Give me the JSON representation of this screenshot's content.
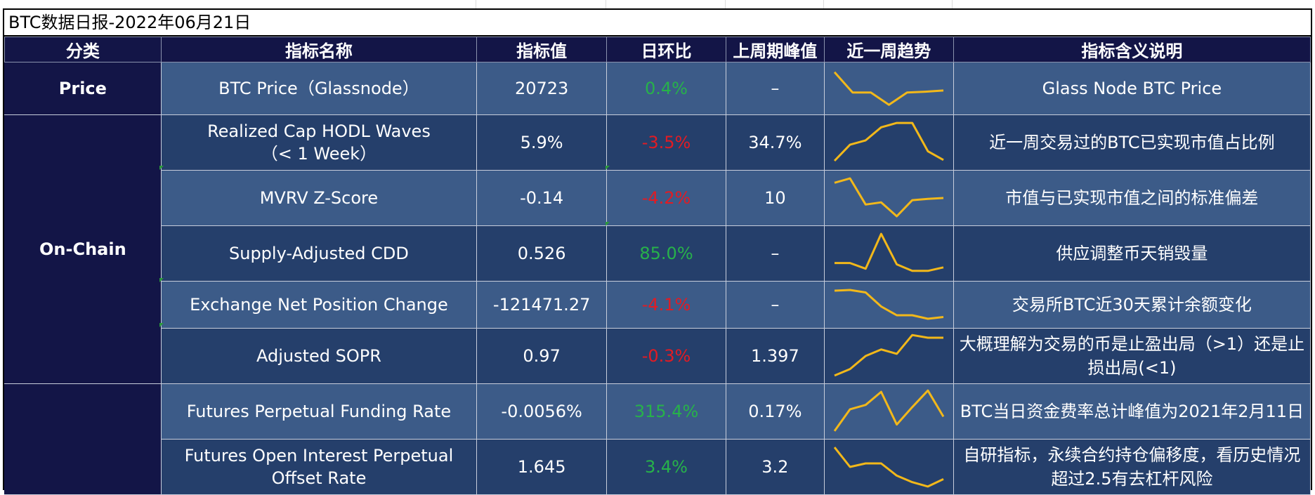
{
  "title": "BTC数据日报-2022年06月21日",
  "headers": {
    "category": "分类",
    "name": "指标名称",
    "value": "指标值",
    "dod": "日环比",
    "peak": "上周期峰值",
    "trend": "近一周趋势",
    "desc": "指标含义说明"
  },
  "categories": {
    "price": "Price",
    "onchain": "On-Chain",
    "derivatives": ""
  },
  "colors": {
    "positive": "#27b24a",
    "negative": "#e21b23",
    "sparkline": "#f2b81a"
  },
  "rows": [
    {
      "name": "BTC Price（Glassnode）",
      "value": "20723",
      "dod": "0.4%",
      "dod_sign": "pos",
      "peak": "–",
      "desc": "Glass Node BTC Price",
      "trend": [
        0.9,
        0.4,
        0.4,
        0.1,
        0.4,
        0.42,
        0.45
      ]
    },
    {
      "name": "Realized Cap HODL Waves\n（< 1 Week）",
      "value": "5.9%",
      "dod": "-3.5%",
      "dod_sign": "neg",
      "peak": "34.7%",
      "desc": "近一周交易过的BTC已实现市值占比例",
      "trend": [
        0.08,
        0.45,
        0.55,
        0.85,
        0.95,
        0.95,
        0.3,
        0.1
      ]
    },
    {
      "name": "MVRV Z-Score",
      "value": "-0.14",
      "dod": "-4.2%",
      "dod_sign": "neg",
      "peak": "10",
      "desc": "市值与已实现市值之间的标准偏差",
      "trend": [
        0.85,
        0.95,
        0.35,
        0.4,
        0.08,
        0.45,
        0.48,
        0.5
      ]
    },
    {
      "name": "Supply-Adjusted CDD",
      "value": "0.526",
      "dod": "85.0%",
      "dod_sign": "pos",
      "peak": "–",
      "desc": "供应调整币天销毁量",
      "trend": [
        0.28,
        0.28,
        0.15,
        0.95,
        0.25,
        0.1,
        0.1,
        0.18
      ]
    },
    {
      "name": "Exchange Net Position Change",
      "value": "-121471.27",
      "dod": "-4.1%",
      "dod_sign": "neg",
      "peak": "–",
      "desc": "交易所BTC近30天累计余额变化",
      "trend": [
        0.9,
        0.92,
        0.85,
        0.45,
        0.2,
        0.2,
        0.1,
        0.15
      ]
    },
    {
      "name": "Adjusted SOPR",
      "value": "0.97",
      "dod": "-0.3%",
      "dod_sign": "neg",
      "peak": "1.397",
      "desc": "大概理解为交易的币是止盈出局（>1）还是止损出局(<1)",
      "trend": [
        0.05,
        0.2,
        0.5,
        0.65,
        0.55,
        0.98,
        0.92,
        0.92
      ]
    },
    {
      "name": "Futures Perpetual Funding Rate",
      "value": "-0.0056%",
      "dod": "315.4%",
      "dod_sign": "pos",
      "peak": "0.17%",
      "desc": "BTC当日资金费率总计峰值为2021年2月11日",
      "trend": [
        0.05,
        0.55,
        0.65,
        0.95,
        0.2,
        0.6,
        0.98,
        0.38
      ]
    },
    {
      "name": "Futures Open Interest Perpetual\nOffset Rate",
      "value": "1.645",
      "dod": "3.4%",
      "dod_sign": "pos",
      "peak": "3.2",
      "desc": "自研指标，永续合约持仓偏移度，看历史情况超过2.5有去杠杆风险",
      "trend": [
        0.95,
        0.5,
        0.58,
        0.58,
        0.3,
        0.15,
        0.05,
        0.22
      ]
    }
  ]
}
